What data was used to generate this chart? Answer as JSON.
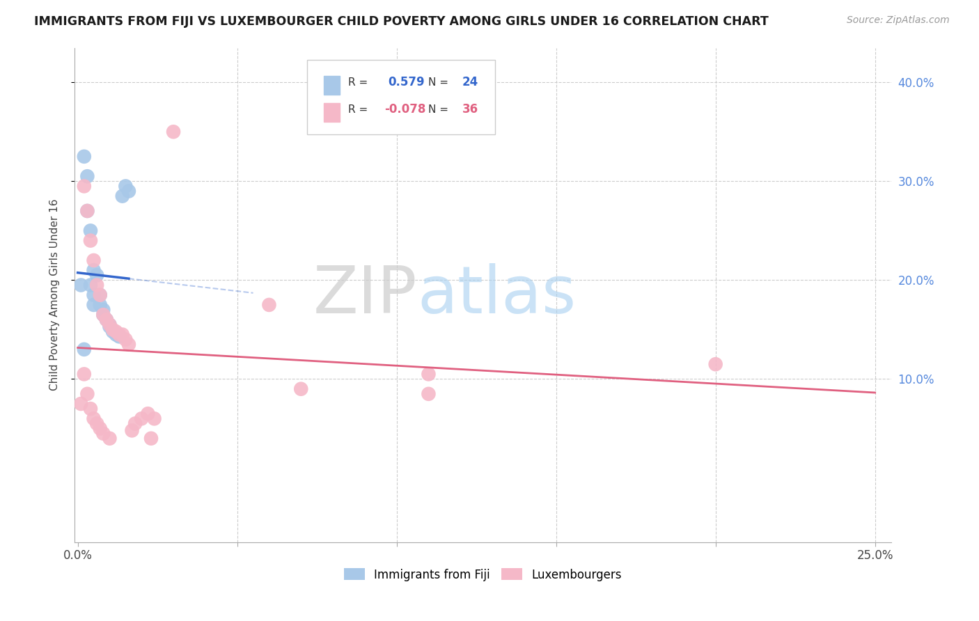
{
  "title": "IMMIGRANTS FROM FIJI VS LUXEMBOURGER CHILD POVERTY AMONG GIRLS UNDER 16 CORRELATION CHART",
  "source": "Source: ZipAtlas.com",
  "ylabel": "Child Poverty Among Girls Under 16",
  "xlim": [
    -0.001,
    0.255
  ],
  "ylim": [
    -0.065,
    0.435
  ],
  "xticks": [
    0.0,
    0.05,
    0.1,
    0.15,
    0.2,
    0.25
  ],
  "yticks": [
    0.1,
    0.2,
    0.3,
    0.4
  ],
  "xticklabels": [
    "0.0%",
    "",
    "",
    "",
    "",
    "25.0%"
  ],
  "yticklabels_right": [
    "10.0%",
    "20.0%",
    "30.0%",
    "40.0%"
  ],
  "legend_fiji_r": "0.579",
  "legend_fiji_n": "24",
  "legend_lux_r": "-0.078",
  "legend_lux_n": "36",
  "fiji_color": "#a8c8e8",
  "lux_color": "#f5b8c8",
  "fiji_line_color": "#3366cc",
  "lux_line_color": "#e06080",
  "watermark_zip": "ZIP",
  "watermark_atlas": "atlas",
  "fiji_points": [
    [
      0.001,
      0.195
    ],
    [
      0.002,
      0.325
    ],
    [
      0.003,
      0.305
    ],
    [
      0.003,
      0.27
    ],
    [
      0.004,
      0.25
    ],
    [
      0.004,
      0.195
    ],
    [
      0.005,
      0.21
    ],
    [
      0.005,
      0.185
    ],
    [
      0.005,
      0.175
    ],
    [
      0.006,
      0.205
    ],
    [
      0.007,
      0.185
    ],
    [
      0.007,
      0.175
    ],
    [
      0.008,
      0.17
    ],
    [
      0.008,
      0.165
    ],
    [
      0.009,
      0.16
    ],
    [
      0.01,
      0.155
    ],
    [
      0.01,
      0.153
    ],
    [
      0.011,
      0.148
    ],
    [
      0.012,
      0.145
    ],
    [
      0.013,
      0.143
    ],
    [
      0.014,
      0.285
    ],
    [
      0.015,
      0.295
    ],
    [
      0.016,
      0.29
    ],
    [
      0.002,
      0.13
    ]
  ],
  "lux_points": [
    [
      0.001,
      0.075
    ],
    [
      0.002,
      0.295
    ],
    [
      0.002,
      0.105
    ],
    [
      0.003,
      0.27
    ],
    [
      0.003,
      0.085
    ],
    [
      0.004,
      0.24
    ],
    [
      0.004,
      0.07
    ],
    [
      0.005,
      0.22
    ],
    [
      0.005,
      0.06
    ],
    [
      0.006,
      0.195
    ],
    [
      0.006,
      0.055
    ],
    [
      0.007,
      0.185
    ],
    [
      0.007,
      0.05
    ],
    [
      0.008,
      0.165
    ],
    [
      0.008,
      0.045
    ],
    [
      0.009,
      0.16
    ],
    [
      0.01,
      0.155
    ],
    [
      0.01,
      0.04
    ],
    [
      0.011,
      0.15
    ],
    [
      0.012,
      0.148
    ],
    [
      0.013,
      0.145
    ],
    [
      0.014,
      0.145
    ],
    [
      0.015,
      0.14
    ],
    [
      0.016,
      0.135
    ],
    [
      0.017,
      0.048
    ],
    [
      0.018,
      0.055
    ],
    [
      0.02,
      0.06
    ],
    [
      0.022,
      0.065
    ],
    [
      0.023,
      0.04
    ],
    [
      0.024,
      0.06
    ],
    [
      0.03,
      0.35
    ],
    [
      0.06,
      0.175
    ],
    [
      0.07,
      0.09
    ],
    [
      0.11,
      0.105
    ],
    [
      0.2,
      0.115
    ],
    [
      0.11,
      0.085
    ]
  ]
}
